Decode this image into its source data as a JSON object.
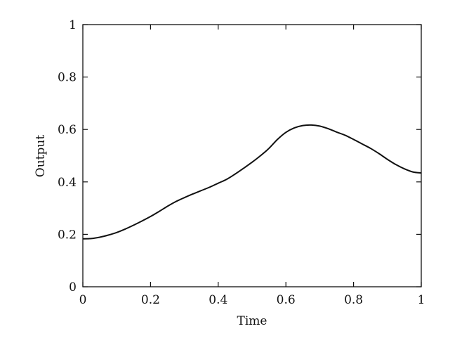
{
  "chart_data": {
    "type": "line",
    "title": "",
    "xlabel": "Time",
    "ylabel": "Output",
    "xlim": [
      0,
      1
    ],
    "ylim": [
      0,
      1
    ],
    "xticks": [
      0,
      0.2,
      0.4,
      0.6,
      0.8,
      1
    ],
    "xtick_labels": [
      "0",
      "0.2",
      "0.4",
      "0.6",
      "0.8",
      "1"
    ],
    "yticks": [
      0,
      0.2,
      0.4,
      0.6,
      0.8,
      1
    ],
    "ytick_labels": [
      "0",
      "0.2",
      "0.4",
      "0.6",
      "0.8",
      "1"
    ],
    "grid": false,
    "legend": "none",
    "line_color": "#111111",
    "series": [
      {
        "x": [
          0,
          0.025,
          0.05,
          0.075,
          0.1,
          0.125,
          0.15,
          0.175,
          0.2,
          0.225,
          0.25,
          0.275,
          0.3,
          0.325,
          0.35,
          0.375,
          0.4,
          0.425,
          0.45,
          0.475,
          0.5,
          0.525,
          0.55,
          0.575,
          0.6,
          0.625,
          0.65,
          0.675,
          0.7,
          0.725,
          0.75,
          0.775,
          0.8,
          0.825,
          0.85,
          0.875,
          0.9,
          0.925,
          0.95,
          0.975,
          1.0
        ],
        "values": [
          0.183,
          0.184,
          0.189,
          0.197,
          0.207,
          0.22,
          0.235,
          0.251,
          0.268,
          0.287,
          0.307,
          0.325,
          0.34,
          0.354,
          0.367,
          0.38,
          0.395,
          0.41,
          0.43,
          0.452,
          0.475,
          0.5,
          0.528,
          0.562,
          0.589,
          0.606,
          0.615,
          0.617,
          0.613,
          0.603,
          0.59,
          0.578,
          0.562,
          0.545,
          0.528,
          0.508,
          0.486,
          0.466,
          0.45,
          0.438,
          0.434
        ]
      }
    ]
  }
}
